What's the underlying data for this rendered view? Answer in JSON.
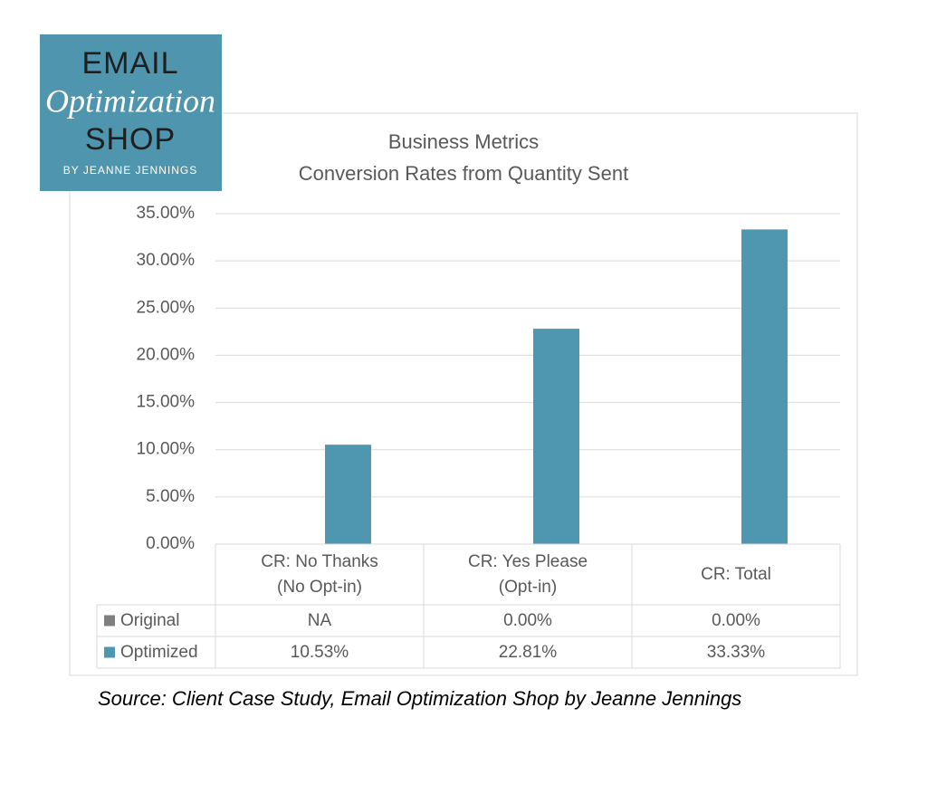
{
  "logo": {
    "line1": "EMAIL",
    "line2": "Optimization",
    "line3": "SHOP",
    "byline": "BY JEANNE JENNINGS"
  },
  "chart_data": {
    "type": "bar",
    "title": "Business Metrics",
    "subtitle": "Conversion Rates from Quantity Sent",
    "categories": [
      "CR: No Thanks\n(No Opt-in)",
      "CR: Yes Please\n(Opt-in)",
      "CR: Total"
    ],
    "series": [
      {
        "name": "Original",
        "color": "#7f7f7f",
        "values": [
          null,
          0,
          0
        ],
        "value_labels": [
          "NA",
          "0.00%",
          "0.00%"
        ]
      },
      {
        "name": "Optimized",
        "color": "#4f97b0",
        "values": [
          10.53,
          22.81,
          33.33
        ],
        "value_labels": [
          "10.53%",
          "22.81%",
          "33.33%"
        ]
      }
    ],
    "ylim": [
      0,
      35
    ],
    "yticks": [
      {
        "value": 0,
        "label": "0.00%"
      },
      {
        "value": 5,
        "label": "5.00%"
      },
      {
        "value": 10,
        "label": "10.00%"
      },
      {
        "value": 15,
        "label": "15.00%"
      },
      {
        "value": 20,
        "label": "20.00%"
      },
      {
        "value": 25,
        "label": "25.00%"
      },
      {
        "value": 30,
        "label": "30.00%"
      },
      {
        "value": 35,
        "label": "35.00%"
      }
    ],
    "grid": true,
    "data_table": true
  },
  "source": "Source: Client Case Study, Email Optimization Shop by Jeanne Jennings"
}
